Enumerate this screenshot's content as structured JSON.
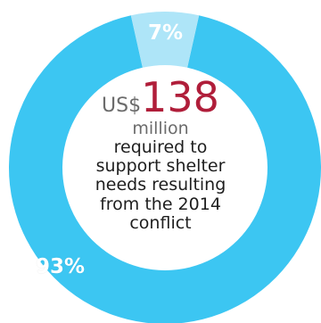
{
  "colors": {
    "primary_segment": "#3cc6f2",
    "secondary_segment": "#aee5f8",
    "amount": "#b01e3a",
    "currency": "#6b6b6b"
  },
  "center": {
    "currency": "US$",
    "amount": "138",
    "unit": "million",
    "description_lines": [
      "required to",
      "support shelter",
      "needs resulting",
      "from the 2014",
      "conflict"
    ]
  },
  "chart_data": {
    "type": "pie",
    "categories": [
      "",
      ""
    ],
    "values": [
      93,
      7
    ],
    "labels": [
      "93%",
      "7%"
    ],
    "title": "",
    "donut": true
  }
}
